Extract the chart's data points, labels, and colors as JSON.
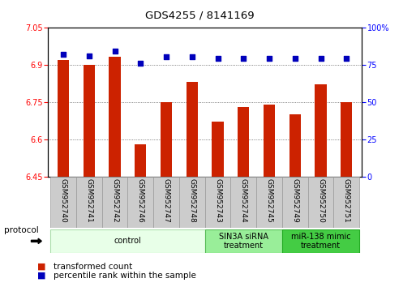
{
  "title": "GDS4255 / 8141169",
  "samples": [
    "GSM952740",
    "GSM952741",
    "GSM952742",
    "GSM952746",
    "GSM952747",
    "GSM952748",
    "GSM952743",
    "GSM952744",
    "GSM952745",
    "GSM952749",
    "GSM952750",
    "GSM952751"
  ],
  "transformed_counts": [
    6.92,
    6.9,
    6.93,
    6.58,
    6.75,
    6.83,
    6.67,
    6.73,
    6.74,
    6.7,
    6.82,
    6.75
  ],
  "percentile_ranks": [
    82,
    81,
    84,
    76,
    80,
    80,
    79,
    79,
    79,
    79,
    79,
    79
  ],
  "ylim_left": [
    6.45,
    7.05
  ],
  "ylim_right": [
    0,
    100
  ],
  "yticks_left": [
    6.45,
    6.6,
    6.75,
    6.9,
    7.05
  ],
  "yticks_right": [
    0,
    25,
    50,
    75,
    100
  ],
  "bar_color": "#cc2200",
  "dot_color": "#0000bb",
  "groups": [
    {
      "label": "control",
      "start": 0,
      "end": 6,
      "color": "#e8ffe8",
      "edge_color": "#aaddaa"
    },
    {
      "label": "SIN3A siRNA\ntreatment",
      "start": 6,
      "end": 9,
      "color": "#99ee99",
      "edge_color": "#55bb55"
    },
    {
      "label": "miR-138 mimic\ntreatment",
      "start": 9,
      "end": 12,
      "color": "#44cc44",
      "edge_color": "#22aa22"
    }
  ],
  "bar_width": 0.45,
  "legend_bar_label": "transformed count",
  "legend_dot_label": "percentile rank within the sample",
  "protocol_label": "protocol",
  "background_color": "#ffffff",
  "grid_color": "#555555",
  "label_bg_color": "#cccccc",
  "label_edge_color": "#999999"
}
